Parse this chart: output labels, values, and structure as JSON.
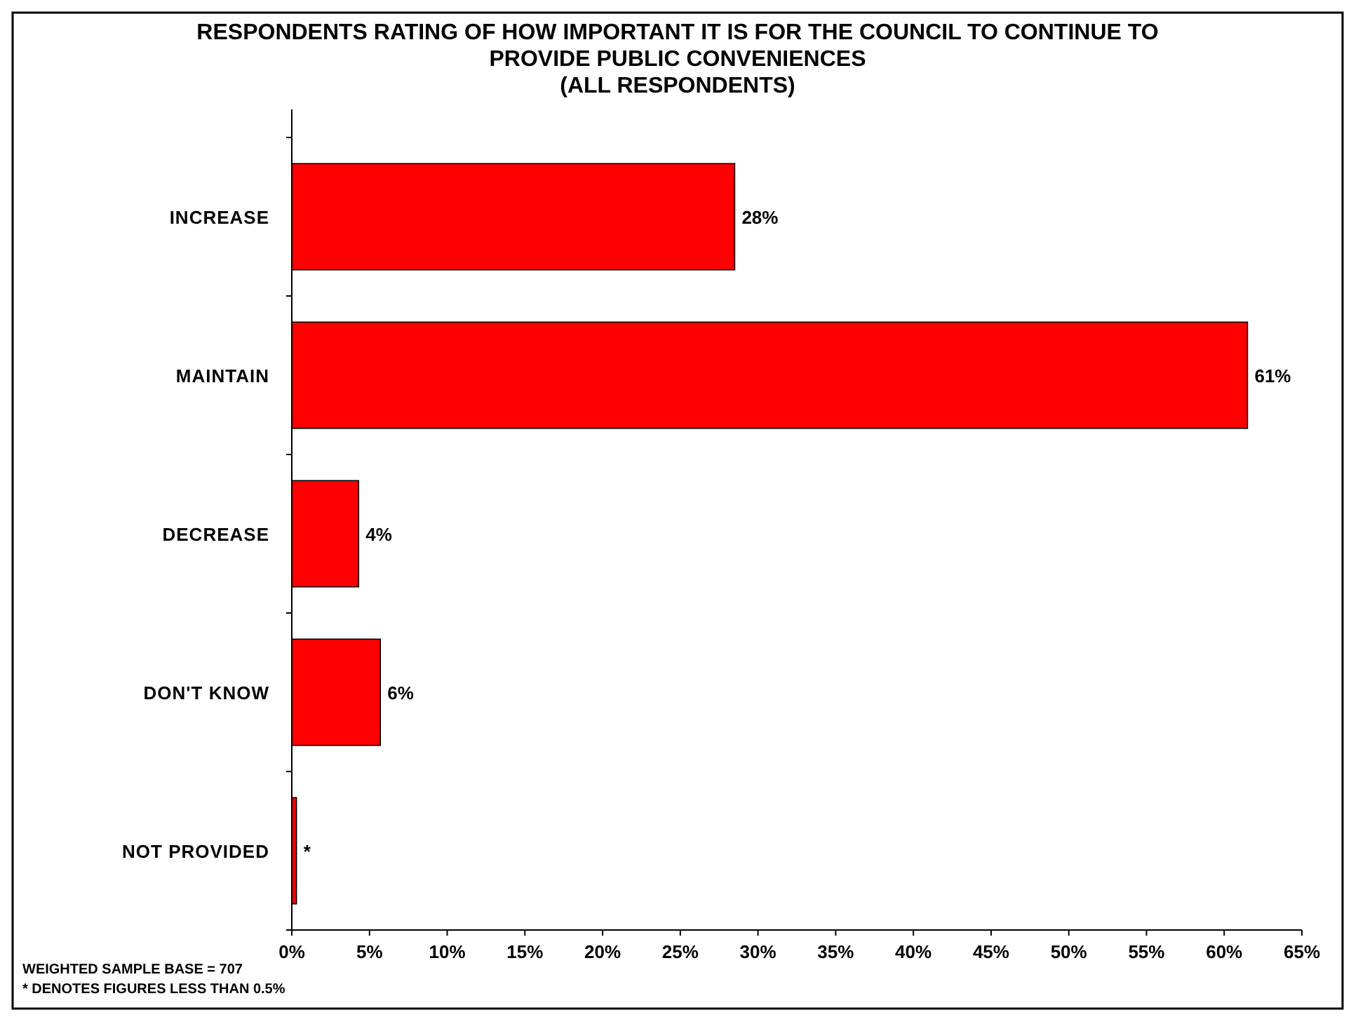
{
  "chart_data": {
    "type": "bar",
    "orientation": "horizontal",
    "title": "RESPONDENTS RATING OF HOW IMPORTANT IT IS FOR THE COUNCIL TO CONTINUE TO PROVIDE PUBLIC CONVENIENCES (ALL RESPONDENTS)",
    "categories": [
      "INCREASE",
      "MAINTAIN",
      "DECREASE",
      "DON'T KNOW",
      "NOT PROVIDED"
    ],
    "values": [
      28.5,
      61.5,
      4.3,
      5.7,
      0.3
    ],
    "value_labels": [
      "28%",
      "61%",
      "4%",
      "6%",
      "*"
    ],
    "color": "#ff0000",
    "xlim": [
      0,
      65
    ],
    "xticks": [
      {
        "value": 0,
        "label": "0%"
      },
      {
        "value": 5,
        "label": "5%"
      },
      {
        "value": 10,
        "label": "10%"
      },
      {
        "value": 15,
        "label": "15%"
      },
      {
        "value": 20,
        "label": "20%"
      },
      {
        "value": 25,
        "label": "25%"
      },
      {
        "value": 30,
        "label": "30%"
      },
      {
        "value": 35,
        "label": "35%"
      },
      {
        "value": 40,
        "label": "40%"
      },
      {
        "value": 45,
        "label": "45%"
      },
      {
        "value": 50,
        "label": "50%"
      },
      {
        "value": 55,
        "label": "55%"
      },
      {
        "value": 60,
        "label": "60%"
      },
      {
        "value": 65,
        "label": "65%"
      }
    ],
    "grid": false,
    "annotations": [
      "WEIGHTED SAMPLE BASE = 707",
      "* DENOTES FIGURES LESS THAN 0.5%"
    ]
  }
}
